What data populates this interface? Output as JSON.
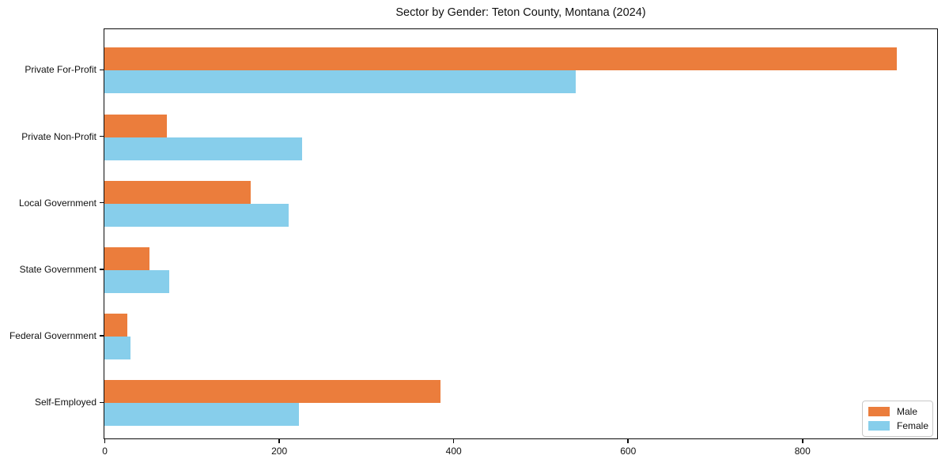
{
  "chart_data": {
    "type": "bar",
    "orientation": "horizontal",
    "title": "Sector by Gender: Teton County, Montana (2024)",
    "categories": [
      "Private For-Profit",
      "Private Non-Profit",
      "Local Government",
      "State Government",
      "Federal Government",
      "Self-Employed"
    ],
    "series": [
      {
        "name": "Male",
        "color": "#EB7D3C",
        "values": [
          909,
          72,
          168,
          52,
          26,
          385
        ]
      },
      {
        "name": "Female",
        "color": "#87CEEB",
        "values": [
          540,
          227,
          211,
          74,
          30,
          223
        ]
      }
    ],
    "xlabel": "",
    "ylabel": "",
    "xlim": [
      0,
      954
    ],
    "xticks": [
      0,
      200,
      400,
      600,
      800
    ],
    "grid": false,
    "legend_position": "lower right"
  },
  "colors": {
    "male_bar": "#EB7D3C",
    "female_bar": "#87CEEB",
    "spine": "#0b0b0b",
    "text": "#111111",
    "legend_border": "#c9c9c9",
    "background": "#ffffff"
  }
}
